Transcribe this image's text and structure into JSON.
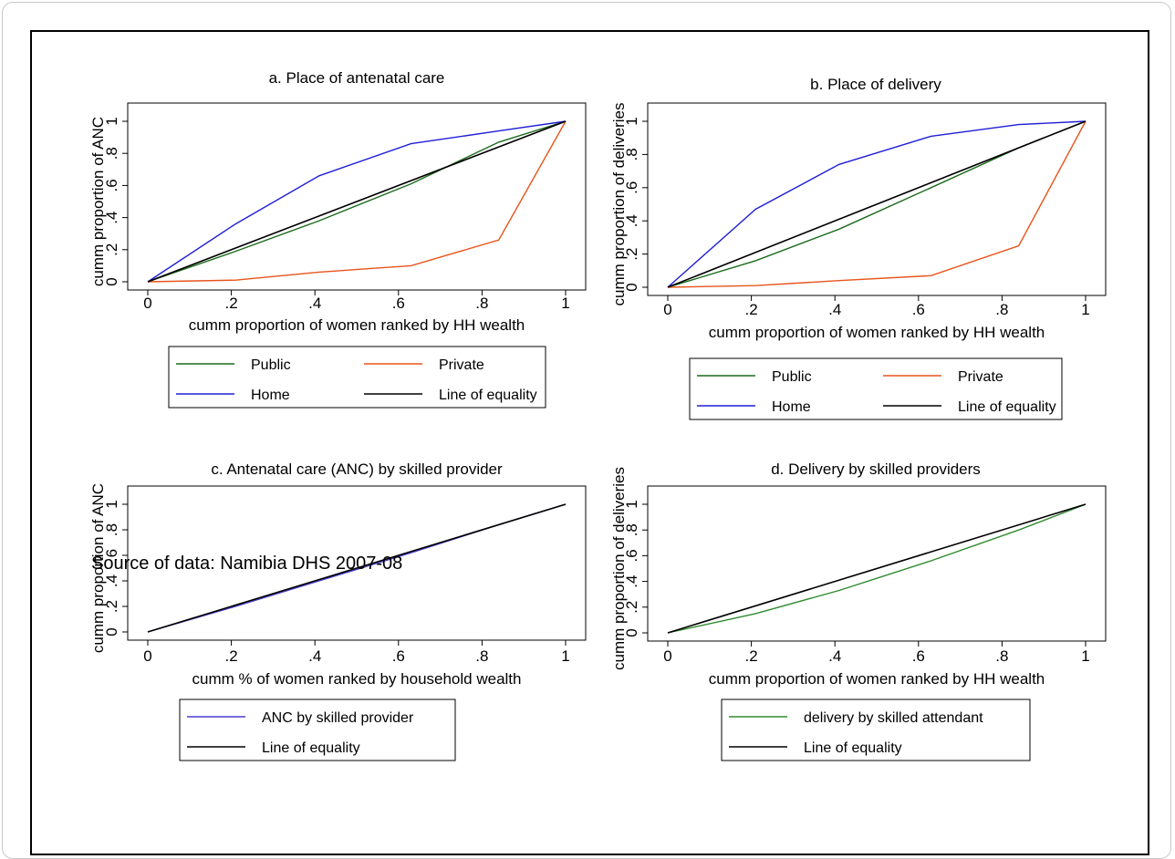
{
  "source_note": "Source of data: Namibia DHS 2007-08",
  "colors": {
    "public": "#1a6b1a",
    "private": "#e8541b",
    "home": "#1f1fd6",
    "equality": "#000000",
    "anc": "#4a3fd0",
    "delivery": "#2e8b2e"
  },
  "chart_data": [
    {
      "type": "line",
      "title": "a. Place of antenatal care",
      "xlabel": "cumm proportion of women ranked by HH wealth",
      "ylabel": "cumm proportion of ANC",
      "xlim": [
        0,
        1
      ],
      "ylim": [
        0,
        1
      ],
      "xticks": [
        "0",
        ".2",
        ".4",
        ".6",
        ".8",
        "1"
      ],
      "yticks": [
        "0",
        ".2",
        ".4",
        ".6",
        ".8",
        "1"
      ],
      "legend_placement": "bottom",
      "series": [
        {
          "name": "Public",
          "color": "#1a6b1a",
          "x": [
            0,
            0.21,
            0.41,
            0.63,
            0.84,
            1
          ],
          "y": [
            0,
            0.19,
            0.38,
            0.61,
            0.87,
            1
          ]
        },
        {
          "name": "Private",
          "color": "#e8541b",
          "x": [
            0,
            0.21,
            0.41,
            0.63,
            0.84,
            1
          ],
          "y": [
            0,
            0.01,
            0.06,
            0.1,
            0.26,
            1
          ]
        },
        {
          "name": "Home",
          "color": "#1f1fd6",
          "x": [
            0,
            0.21,
            0.41,
            0.63,
            0.84,
            1
          ],
          "y": [
            0,
            0.36,
            0.66,
            0.86,
            0.94,
            1
          ]
        },
        {
          "name": "Line of equality",
          "color": "#000000",
          "x": [
            0,
            1
          ],
          "y": [
            0,
            1
          ]
        }
      ]
    },
    {
      "type": "line",
      "title": "b. Place of delivery",
      "xlabel": "cumm proportion of women ranked by HH wealth",
      "ylabel": "cumm proportion of deliveries",
      "xlim": [
        0,
        1
      ],
      "ylim": [
        0,
        1
      ],
      "xticks": [
        "0",
        ".2",
        ".4",
        ".6",
        ".8",
        "1"
      ],
      "yticks": [
        "0",
        ".2",
        ".4",
        ".6",
        ".8",
        "1"
      ],
      "legend_placement": "bottom",
      "series": [
        {
          "name": "Public",
          "color": "#1a6b1a",
          "x": [
            0,
            0.21,
            0.41,
            0.63,
            0.84,
            1
          ],
          "y": [
            0,
            0.16,
            0.35,
            0.6,
            0.84,
            1
          ]
        },
        {
          "name": "Private",
          "color": "#e8541b",
          "x": [
            0,
            0.21,
            0.41,
            0.63,
            0.84,
            1
          ],
          "y": [
            0,
            0.01,
            0.04,
            0.07,
            0.25,
            1
          ]
        },
        {
          "name": "Home",
          "color": "#1f1fd6",
          "x": [
            0,
            0.21,
            0.41,
            0.63,
            0.84,
            1
          ],
          "y": [
            0,
            0.47,
            0.74,
            0.91,
            0.98,
            1
          ]
        },
        {
          "name": "Line of equality",
          "color": "#000000",
          "x": [
            0,
            1
          ],
          "y": [
            0,
            1
          ]
        }
      ]
    },
    {
      "type": "line",
      "title": "c. Antenatal care (ANC) by skilled provider",
      "xlabel": "cumm % of women ranked by household wealth",
      "ylabel": "cumm proportion of ANC",
      "xlim": [
        0,
        1
      ],
      "ylim": [
        0,
        1
      ],
      "xticks": [
        "0",
        ".2",
        ".4",
        ".6",
        ".8",
        "1"
      ],
      "yticks": [
        "0",
        ".2",
        ".4",
        ".6",
        ".8",
        "1"
      ],
      "legend_placement": "bottom",
      "series": [
        {
          "name": "ANC by skilled provider",
          "color": "#4a3fd0",
          "x": [
            0,
            0.21,
            0.41,
            0.63,
            0.84,
            1
          ],
          "y": [
            0,
            0.2,
            0.4,
            0.62,
            0.84,
            1
          ]
        },
        {
          "name": "Line of equality",
          "color": "#000000",
          "x": [
            0,
            1
          ],
          "y": [
            0,
            1
          ]
        }
      ]
    },
    {
      "type": "line",
      "title": "d. Delivery by skilled providers",
      "xlabel": "cumm proportion of women ranked by HH wealth",
      "ylabel": "cumm proportion of deliveries",
      "xlim": [
        0,
        1
      ],
      "ylim": [
        0,
        1
      ],
      "xticks": [
        "0",
        ".2",
        ".4",
        ".6",
        ".8",
        "1"
      ],
      "yticks": [
        "0",
        ".2",
        ".4",
        ".6",
        ".8",
        "1"
      ],
      "legend_placement": "bottom",
      "series": [
        {
          "name": "delivery by skilled attendant",
          "color": "#2e8b2e",
          "x": [
            0,
            0.21,
            0.41,
            0.63,
            0.84,
            1
          ],
          "y": [
            0,
            0.15,
            0.33,
            0.56,
            0.8,
            1
          ]
        },
        {
          "name": "Line of equality",
          "color": "#000000",
          "x": [
            0,
            1
          ],
          "y": [
            0,
            1
          ]
        }
      ]
    }
  ]
}
